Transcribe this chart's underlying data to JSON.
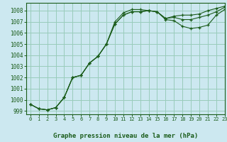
{
  "title": "Graphe pression niveau de la mer (hPa)",
  "background_color": "#cce8f0",
  "grid_color": "#99ccbb",
  "line_color": "#1a5c1a",
  "xlim": [
    -0.5,
    23
  ],
  "ylim": [
    998.7,
    1008.7
  ],
  "yticks": [
    999,
    1000,
    1001,
    1002,
    1003,
    1004,
    1005,
    1006,
    1007,
    1008
  ],
  "xticks": [
    0,
    1,
    2,
    3,
    4,
    5,
    6,
    7,
    8,
    9,
    10,
    11,
    12,
    13,
    14,
    15,
    16,
    17,
    18,
    19,
    20,
    21,
    22,
    23
  ],
  "series1_x": [
    0,
    1,
    2,
    3,
    4,
    5,
    6,
    7,
    8,
    9,
    10,
    11,
    12,
    13,
    14,
    15,
    16,
    17,
    18,
    19,
    20,
    21,
    22,
    23
  ],
  "series1_y": [
    999.6,
    999.2,
    999.1,
    999.3,
    1000.2,
    1002.0,
    1002.2,
    1003.3,
    1003.9,
    1005.0,
    1006.8,
    1007.6,
    1007.9,
    1007.9,
    1008.0,
    1007.9,
    1007.3,
    1007.5,
    1007.6,
    1007.6,
    1007.7,
    1008.0,
    1008.2,
    1008.4
  ],
  "series2_x": [
    0,
    1,
    2,
    3,
    4,
    5,
    6,
    7,
    8,
    9,
    10,
    11,
    12,
    13,
    14,
    15,
    16,
    17,
    18,
    19,
    20,
    21,
    22,
    23
  ],
  "series2_y": [
    999.6,
    999.2,
    999.1,
    999.3,
    1000.2,
    1002.0,
    1002.2,
    1003.3,
    1003.9,
    1005.0,
    1007.0,
    1007.8,
    1008.1,
    1008.1,
    1008.0,
    1007.9,
    1007.2,
    1007.1,
    1006.6,
    1006.4,
    1006.5,
    1006.7,
    1007.6,
    1008.1
  ],
  "series3_x": [
    0,
    1,
    2,
    3,
    4,
    5,
    6,
    7,
    8,
    9,
    10,
    11,
    12,
    13,
    14,
    15,
    16,
    17,
    18,
    19,
    20,
    21,
    22,
    23
  ],
  "series3_y": [
    999.6,
    999.2,
    999.1,
    999.3,
    1000.2,
    1002.0,
    1002.2,
    1003.3,
    1003.9,
    1005.0,
    1006.8,
    1007.6,
    1007.9,
    1007.9,
    1008.0,
    1007.9,
    1007.3,
    1007.4,
    1007.2,
    1007.2,
    1007.4,
    1007.6,
    1007.9,
    1008.3
  ]
}
